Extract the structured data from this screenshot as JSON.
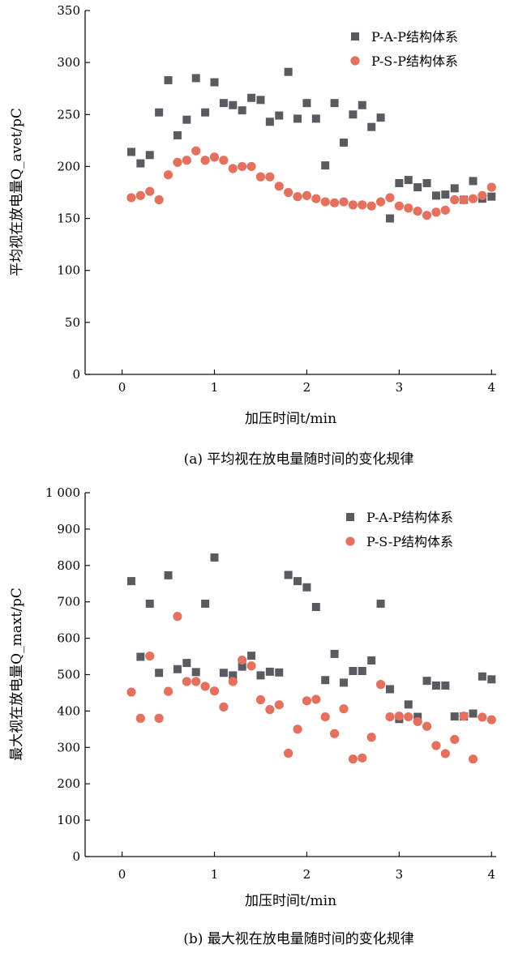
{
  "chart_data": [
    {
      "type": "scatter",
      "title": "",
      "caption": "(a) 平均视在放电量随时间的变化规律",
      "xlabel": "加压时间t/min",
      "ylabel": "平均视在放电量Q_avet/pC",
      "xlim": [
        -0.4,
        4.05
      ],
      "ylim": [
        0,
        350
      ],
      "xticks": [
        "0",
        "1",
        "2",
        "3",
        "4"
      ],
      "yticks": [
        "0",
        "50",
        "100",
        "150",
        "200",
        "250",
        "300",
        "350"
      ],
      "ytick_values": [
        0,
        50,
        100,
        150,
        200,
        250,
        300,
        350
      ],
      "xtick_values": [
        0,
        1,
        2,
        3,
        4
      ],
      "legend_position": "top-right",
      "series": [
        {
          "name": "P-A-P结构体系",
          "marker": "square",
          "color": "#595b60",
          "x": [
            0.1,
            0.2,
            0.3,
            0.4,
            0.5,
            0.6,
            0.7,
            0.8,
            0.9,
            1.0,
            1.1,
            1.2,
            1.3,
            1.4,
            1.5,
            1.6,
            1.7,
            1.8,
            1.9,
            2.0,
            2.1,
            2.2,
            2.3,
            2.4,
            2.5,
            2.6,
            2.7,
            2.8,
            2.9,
            3.0,
            3.1,
            3.2,
            3.3,
            3.4,
            3.5,
            3.6,
            3.7,
            3.8,
            3.9,
            4.0
          ],
          "y": [
            214,
            203,
            211,
            252,
            283,
            230,
            245,
            285,
            252,
            281,
            261,
            259,
            254,
            266,
            264,
            243,
            249,
            291,
            246,
            261,
            246,
            201,
            261,
            223,
            250,
            259,
            238,
            247,
            150,
            184,
            187,
            180,
            184,
            172,
            173,
            179,
            168,
            186,
            169,
            171
          ]
        },
        {
          "name": "P-S-P结构体系",
          "marker": "circle",
          "color": "#e5705e",
          "x": [
            0.1,
            0.2,
            0.3,
            0.4,
            0.5,
            0.6,
            0.7,
            0.8,
            0.9,
            1.0,
            1.1,
            1.2,
            1.3,
            1.4,
            1.5,
            1.6,
            1.7,
            1.8,
            1.9,
            2.0,
            2.1,
            2.2,
            2.3,
            2.4,
            2.5,
            2.6,
            2.7,
            2.8,
            2.9,
            3.0,
            3.1,
            3.2,
            3.3,
            3.4,
            3.5,
            3.6,
            3.7,
            3.8,
            3.9,
            4.0
          ],
          "y": [
            170,
            172,
            176,
            168,
            192,
            204,
            206,
            215,
            206,
            209,
            206,
            198,
            200,
            200,
            190,
            190,
            181,
            175,
            171,
            172,
            169,
            166,
            165,
            166,
            163,
            163,
            162,
            166,
            170,
            162,
            160,
            157,
            153,
            156,
            158,
            168,
            168,
            169,
            172,
            180
          ]
        }
      ]
    },
    {
      "type": "scatter",
      "title": "",
      "caption": "(b) 最大视在放电量随时间的变化规律",
      "xlabel": "加压时间t/min",
      "ylabel": "最大视在放电量Q_maxt/pC",
      "xlim": [
        -0.4,
        4.05
      ],
      "ylim": [
        0,
        1000
      ],
      "xticks": [
        "0",
        "1",
        "2",
        "3",
        "4"
      ],
      "yticks": [
        "0",
        "100",
        "200",
        "300",
        "400",
        "500",
        "600",
        "700",
        "800",
        "900",
        "1 000"
      ],
      "ytick_values": [
        0,
        100,
        200,
        300,
        400,
        500,
        600,
        700,
        800,
        900,
        1000
      ],
      "xtick_values": [
        0,
        1,
        2,
        3,
        4
      ],
      "legend_position": "top-right",
      "series": [
        {
          "name": "P-A-P结构体系",
          "marker": "square",
          "color": "#595b60",
          "x": [
            0.1,
            0.2,
            0.3,
            0.4,
            0.5,
            0.6,
            0.7,
            0.8,
            0.9,
            1.0,
            1.1,
            1.2,
            1.3,
            1.4,
            1.5,
            1.6,
            1.7,
            1.8,
            1.9,
            2.0,
            2.1,
            2.2,
            2.3,
            2.4,
            2.5,
            2.6,
            2.7,
            2.8,
            2.9,
            3.0,
            3.1,
            3.2,
            3.3,
            3.4,
            3.5,
            3.6,
            3.7,
            3.8,
            3.9,
            4.0
          ],
          "y": [
            757,
            549,
            695,
            505,
            773,
            515,
            532,
            507,
            695,
            822,
            505,
            498,
            522,
            552,
            498,
            508,
            506,
            774,
            757,
            740,
            686,
            485,
            557,
            478,
            510,
            510,
            539,
            695,
            460,
            378,
            418,
            384,
            483,
            470,
            470,
            385,
            385,
            393,
            495,
            487
          ]
        },
        {
          "name": "P-S-P结构体系",
          "marker": "circle",
          "color": "#e5705e",
          "x": [
            0.1,
            0.2,
            0.3,
            0.4,
            0.5,
            0.6,
            0.7,
            0.8,
            0.9,
            1.0,
            1.1,
            1.2,
            1.3,
            1.4,
            1.5,
            1.6,
            1.7,
            1.8,
            1.9,
            2.0,
            2.1,
            2.2,
            2.3,
            2.4,
            2.5,
            2.6,
            2.7,
            2.8,
            2.9,
            3.0,
            3.1,
            3.2,
            3.3,
            3.4,
            3.5,
            3.6,
            3.7,
            3.8,
            3.9,
            4.0
          ],
          "y": [
            452,
            380,
            551,
            380,
            454,
            660,
            481,
            481,
            468,
            455,
            411,
            481,
            540,
            524,
            431,
            404,
            417,
            284,
            350,
            428,
            432,
            384,
            338,
            406,
            268,
            271,
            328,
            473,
            384,
            386,
            384,
            371,
            358,
            305,
            283,
            322,
            386,
            268,
            383,
            376
          ]
        }
      ]
    }
  ]
}
